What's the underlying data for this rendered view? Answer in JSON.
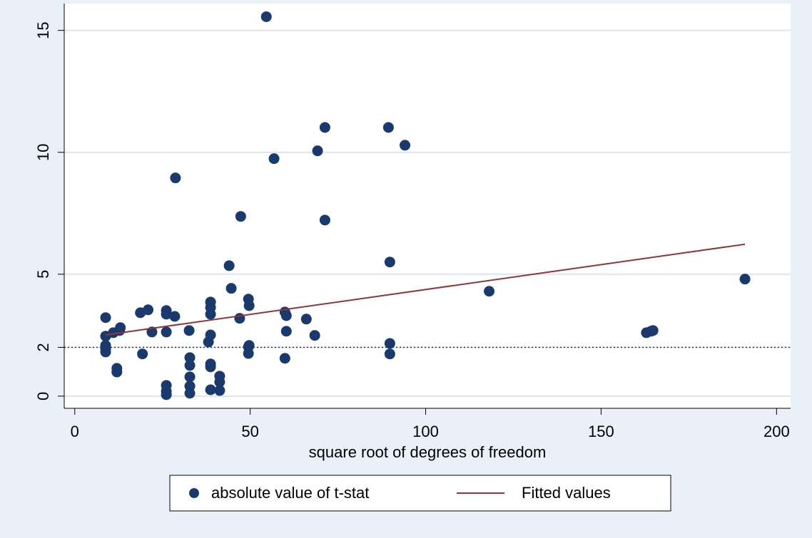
{
  "chart_data": {
    "type": "scatter",
    "xlabel": "square root of degrees of freedom",
    "xlim": [
      -3,
      204
    ],
    "ylim": [
      -0.5,
      16.1
    ],
    "xticks": [
      0,
      50,
      100,
      150,
      200
    ],
    "yticks": [
      0,
      2,
      5,
      10,
      15
    ],
    "grid": true,
    "reference_lines": [
      2
    ],
    "series": [
      {
        "name": "absolute value of t-stat",
        "type": "scatter",
        "color": "#1a3a6e",
        "x": [
          54.6,
          71.3,
          89.4,
          69.2,
          94.1,
          56.8,
          28.7,
          47.3,
          71.3,
          89.8,
          44.0,
          44.6,
          118.1,
          191.0,
          49.5,
          49.7,
          38.7,
          38.7,
          38.7,
          18.7,
          20.9,
          26.1,
          26.1,
          28.5,
          8.8,
          47.0,
          59.9,
          60.3,
          66.0,
          13.0,
          12.8,
          11.0,
          22.0,
          26.1,
          32.6,
          60.3,
          38.7,
          68.4,
          8.8,
          8.8,
          8.8,
          8.8,
          38.1,
          49.7,
          49.5,
          49.5,
          89.8,
          89.8,
          19.3,
          59.9,
          32.8,
          32.8,
          38.7,
          38.7,
          12.0,
          12.0,
          41.3,
          41.3,
          32.8,
          32.8,
          32.8,
          26.1,
          26.1,
          26.1,
          38.7,
          41.3,
          162.9,
          164.2,
          164.8
        ],
        "values": [
          15.56,
          11.02,
          11.02,
          10.06,
          10.29,
          9.74,
          8.95,
          7.37,
          7.22,
          5.5,
          5.35,
          4.42,
          4.3,
          4.8,
          3.98,
          3.71,
          3.86,
          3.63,
          3.36,
          3.42,
          3.54,
          3.51,
          3.36,
          3.27,
          3.22,
          3.19,
          3.45,
          3.3,
          3.16,
          2.81,
          2.69,
          2.6,
          2.63,
          2.63,
          2.69,
          2.66,
          2.51,
          2.49,
          2.46,
          2.08,
          1.93,
          1.81,
          2.22,
          2.08,
          2.02,
          1.75,
          2.16,
          1.73,
          1.73,
          1.55,
          1.58,
          1.26,
          1.32,
          1.2,
          1.14,
          0.99,
          0.82,
          0.58,
          0.79,
          0.41,
          0.12,
          0.44,
          0.2,
          0.06,
          0.26,
          0.23,
          2.6,
          2.66,
          2.69
        ]
      },
      {
        "name": "Fitted values",
        "type": "line",
        "color": "#90353b",
        "x": [
          8.8,
          191.0
        ],
        "values": [
          2.51,
          6.23
        ]
      }
    ]
  }
}
